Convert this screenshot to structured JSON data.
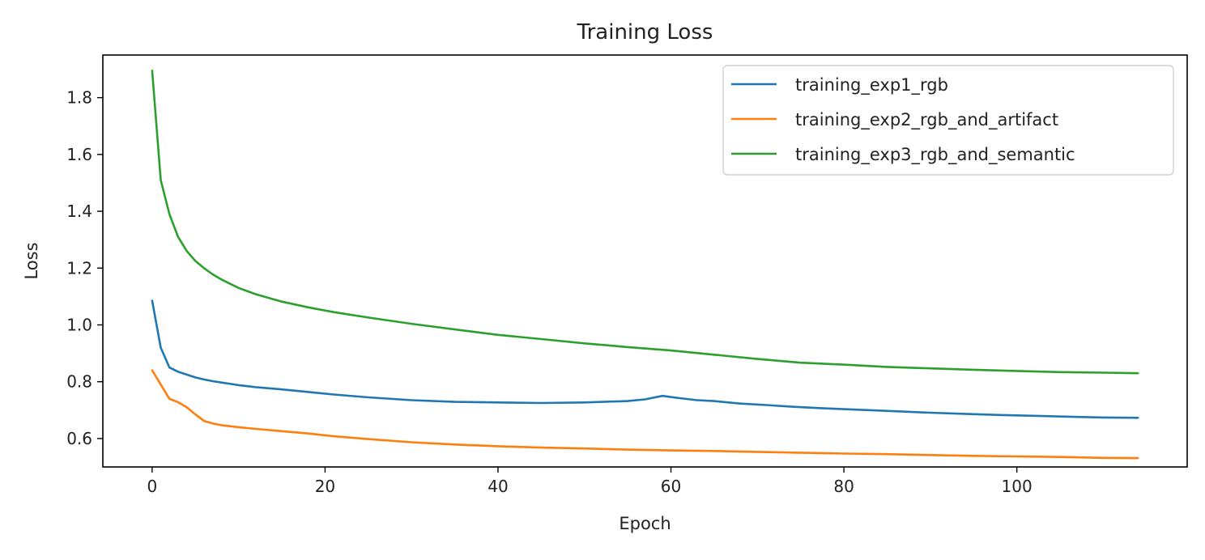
{
  "chart_data": {
    "type": "line",
    "title": "Training Loss",
    "xlabel": "Epoch",
    "ylabel": "Loss",
    "xlim": [
      -5.7,
      119.7
    ],
    "ylim": [
      0.5,
      1.95
    ],
    "xticks": [
      0,
      20,
      40,
      60,
      80,
      100
    ],
    "yticks": [
      0.6,
      0.8,
      1.0,
      1.2,
      1.4,
      1.6,
      1.8
    ],
    "grid": false,
    "legend_position": "top-right",
    "series": [
      {
        "name": "training_exp1_rgb",
        "color": "#1f77b4",
        "x": [
          0,
          1,
          2,
          3,
          4,
          5,
          6,
          7,
          8,
          10,
          12,
          15,
          18,
          21,
          25,
          30,
          35,
          40,
          45,
          50,
          55,
          57,
          59,
          61,
          63,
          65,
          68,
          71,
          74,
          78,
          82,
          86,
          90,
          94,
          98,
          102,
          106,
          110,
          114
        ],
        "y": [
          1.085,
          0.92,
          0.85,
          0.835,
          0.825,
          0.815,
          0.808,
          0.802,
          0.797,
          0.788,
          0.781,
          0.773,
          0.764,
          0.755,
          0.745,
          0.735,
          0.729,
          0.727,
          0.725,
          0.727,
          0.732,
          0.738,
          0.75,
          0.742,
          0.735,
          0.732,
          0.723,
          0.718,
          0.712,
          0.706,
          0.701,
          0.696,
          0.691,
          0.687,
          0.683,
          0.68,
          0.677,
          0.674,
          0.673
        ]
      },
      {
        "name": "training_exp2_rgb_and_artifact",
        "color": "#ff7f0e",
        "x": [
          0,
          1,
          2,
          3,
          4,
          5,
          6,
          7,
          8,
          10,
          12,
          15,
          18,
          21,
          25,
          30,
          35,
          40,
          45,
          50,
          55,
          60,
          65,
          70,
          75,
          80,
          85,
          90,
          95,
          100,
          105,
          110,
          114
        ],
        "y": [
          0.84,
          0.79,
          0.74,
          0.728,
          0.71,
          0.685,
          0.662,
          0.653,
          0.647,
          0.64,
          0.634,
          0.626,
          0.618,
          0.608,
          0.598,
          0.587,
          0.579,
          0.573,
          0.568,
          0.565,
          0.561,
          0.558,
          0.556,
          0.553,
          0.55,
          0.547,
          0.545,
          0.542,
          0.539,
          0.537,
          0.535,
          0.532,
          0.531
        ]
      },
      {
        "name": "training_exp3_rgb_and_semantic",
        "color": "#2ca02c",
        "x": [
          0,
          1,
          2,
          3,
          4,
          5,
          6,
          7,
          8,
          10,
          12,
          15,
          18,
          21,
          25,
          30,
          35,
          40,
          45,
          50,
          55,
          60,
          65,
          70,
          75,
          80,
          85,
          90,
          95,
          100,
          105,
          110,
          114
        ],
        "y": [
          1.895,
          1.51,
          1.39,
          1.31,
          1.26,
          1.225,
          1.2,
          1.178,
          1.16,
          1.13,
          1.108,
          1.082,
          1.062,
          1.045,
          1.026,
          1.004,
          0.984,
          0.965,
          0.95,
          0.935,
          0.922,
          0.91,
          0.895,
          0.88,
          0.867,
          0.86,
          0.852,
          0.847,
          0.842,
          0.838,
          0.834,
          0.832,
          0.83
        ]
      }
    ]
  }
}
